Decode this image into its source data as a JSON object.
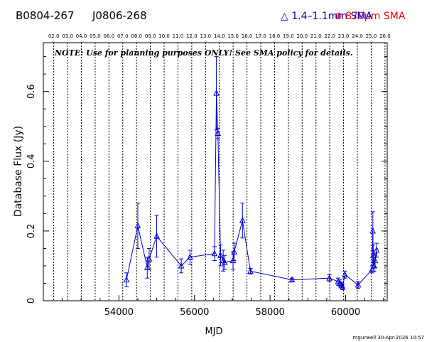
{
  "header": {
    "source_name": "B0804-267",
    "alt_name": "J0806-268",
    "legend_blue": "△ 1.4–1.1mm SMA",
    "legend_red": "⊕ 870µm SMA"
  },
  "colors": {
    "blue_series": "#0000cc",
    "red_series": "#ee0000",
    "axis": "#000000"
  },
  "chart_data": {
    "type": "scatter",
    "note": "NOTE: Use for planning purposes ONLY!  See SMA policy for details.",
    "xlabel": "MJD",
    "ylabel": "Database Flux (Jy)",
    "footer": "mgurwell 30-Apr-2026 10:57",
    "xlim": [
      52000,
      61100
    ],
    "ylim": [
      0,
      0.74
    ],
    "x_ticks": [
      54000,
      56000,
      58000,
      60000
    ],
    "x_tick_labels": [
      "54000",
      "56000",
      "58000",
      "60000"
    ],
    "y_ticks": [
      0,
      0.2,
      0.4,
      0.6
    ],
    "y_tick_labels": [
      "0",
      "0.2",
      "0.4",
      "0.6"
    ],
    "year_labels": [
      "02.0",
      "03.0",
      "04.0",
      "05.0",
      "06.0",
      "07.0",
      "08.0",
      "09.0",
      "10.0",
      "11.0",
      "12.0",
      "13.0",
      "14.0",
      "15.0",
      "16.0",
      "17.0",
      "18.0",
      "19.0",
      "20.0",
      "21.0",
      "22.0",
      "23.0",
      "24.0",
      "25.0",
      "26.0"
    ],
    "year_mjd": [
      52275,
      52640,
      53005,
      53371,
      53736,
      54101,
      54466,
      54832,
      55197,
      55562,
      55927,
      56293,
      56658,
      57023,
      57388,
      57754,
      58119,
      58484,
      58849,
      59215,
      59580,
      59945,
      60310,
      60676,
      61041
    ],
    "series": [
      {
        "name": "1.4–1.1mm SMA",
        "color": "#0000cc",
        "points": [
          {
            "x": 54200,
            "y": 0.06,
            "err": 0.02
          },
          {
            "x": 54500,
            "y": 0.215,
            "err": 0.065
          },
          {
            "x": 54750,
            "y": 0.095,
            "err": 0.03
          },
          {
            "x": 54800,
            "y": 0.12,
            "err": 0.03
          },
          {
            "x": 55000,
            "y": 0.185,
            "err": 0.06
          },
          {
            "x": 55650,
            "y": 0.1,
            "err": 0.02
          },
          {
            "x": 55880,
            "y": 0.125,
            "err": 0.02
          },
          {
            "x": 56530,
            "y": 0.135,
            "err": 0.02
          },
          {
            "x": 56580,
            "y": 0.595,
            "err": 0.105
          },
          {
            "x": 56620,
            "y": 0.48,
            "err": 0.015
          },
          {
            "x": 56690,
            "y": 0.13,
            "err": 0.03
          },
          {
            "x": 56760,
            "y": 0.115,
            "err": 0.03
          },
          {
            "x": 56800,
            "y": 0.11,
            "err": 0.02
          },
          {
            "x": 57020,
            "y": 0.115,
            "err": 0.025
          },
          {
            "x": 57050,
            "y": 0.14,
            "err": 0.025
          },
          {
            "x": 57270,
            "y": 0.23,
            "err": 0.05
          },
          {
            "x": 57480,
            "y": 0.085,
            "err": 0.008
          },
          {
            "x": 58580,
            "y": 0.06,
            "err": 0.005
          },
          {
            "x": 59570,
            "y": 0.065,
            "err": 0.01
          },
          {
            "x": 59800,
            "y": 0.055,
            "err": 0.01
          },
          {
            "x": 59850,
            "y": 0.05,
            "err": 0.01
          },
          {
            "x": 59890,
            "y": 0.045,
            "err": 0.008
          },
          {
            "x": 59920,
            "y": 0.04,
            "err": 0.008
          },
          {
            "x": 59980,
            "y": 0.075,
            "err": 0.01
          },
          {
            "x": 60330,
            "y": 0.045,
            "err": 0.01
          },
          {
            "x": 60700,
            "y": 0.09,
            "err": 0.01
          },
          {
            "x": 60720,
            "y": 0.2,
            "err": 0.055
          },
          {
            "x": 60730,
            "y": 0.13,
            "err": 0.03
          },
          {
            "x": 60750,
            "y": 0.1,
            "err": 0.015
          },
          {
            "x": 60780,
            "y": 0.115,
            "err": 0.02
          },
          {
            "x": 60820,
            "y": 0.145,
            "err": 0.02
          }
        ]
      }
    ]
  }
}
